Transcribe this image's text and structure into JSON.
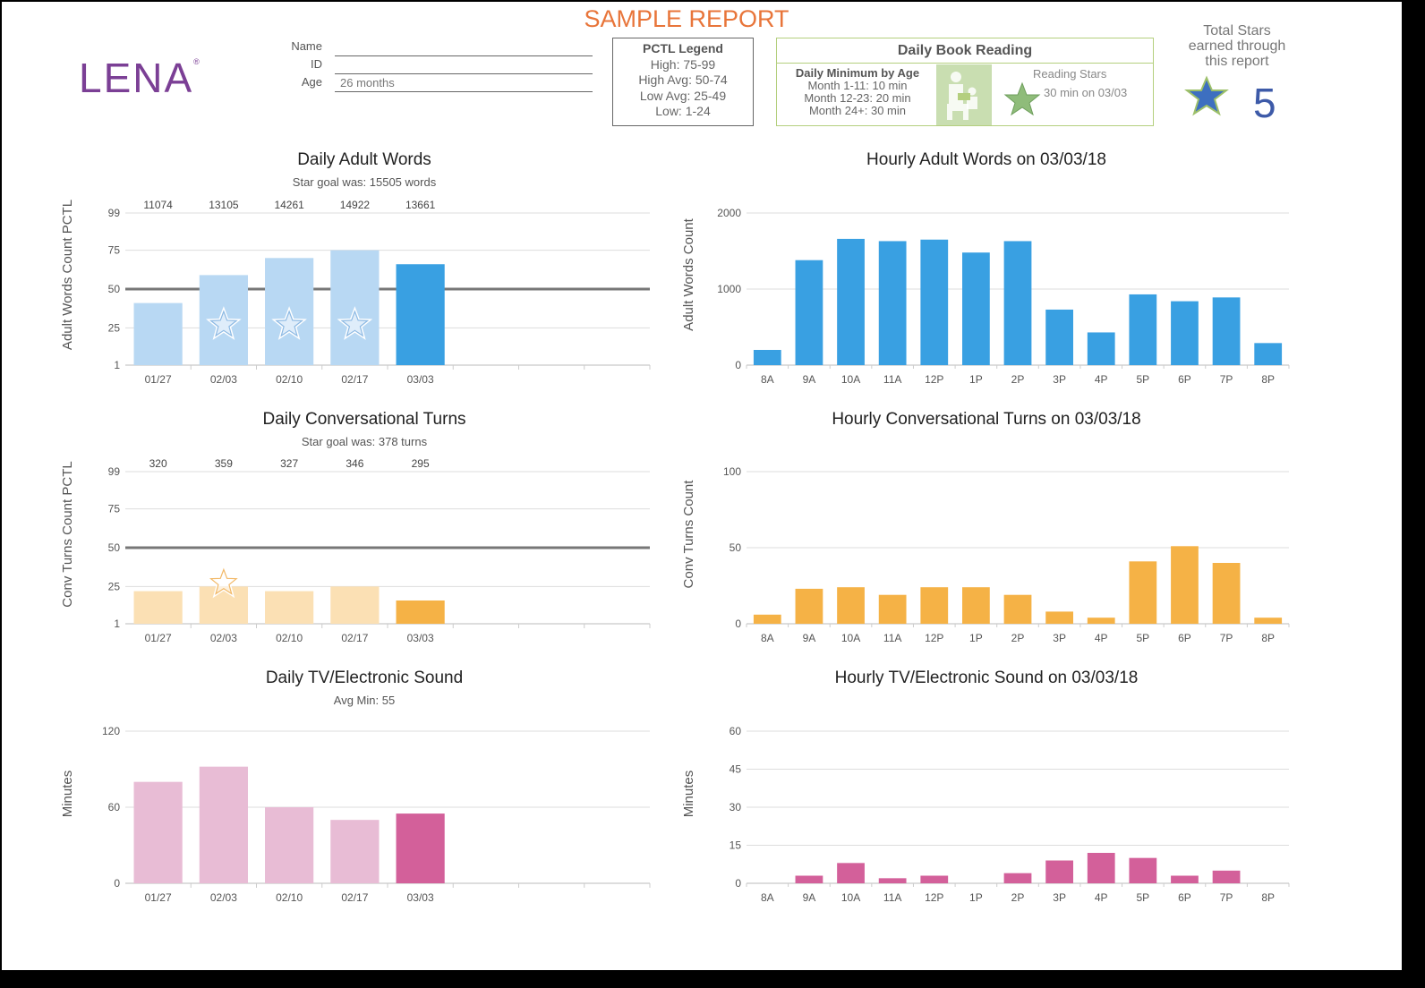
{
  "header": {
    "title": "SAMPLE REPORT",
    "logo": "LENA",
    "logo_mark": "®",
    "fields": [
      {
        "label": "Name",
        "value": ""
      },
      {
        "label": "ID",
        "value": ""
      },
      {
        "label": "Age",
        "value": "26 months"
      }
    ]
  },
  "pctl_legend": {
    "title": "PCTL Legend",
    "lines": [
      "High: 75-99",
      "High Avg: 50-74",
      "Low Avg: 25-49",
      "Low: 1-24"
    ]
  },
  "book_reading": {
    "title": "Daily Book Reading",
    "min_title": "Daily Minimum by Age",
    "min_lines": [
      "Month 1-11: 10 min",
      "Month 12-23: 20 min",
      "Month 24+: 30 min"
    ],
    "stars_title": "Reading Stars",
    "stars_entry": "30 min on 03/03"
  },
  "total_stars": {
    "label_lines": [
      "Total Stars",
      "earned through",
      "this report"
    ],
    "count": "5"
  },
  "colors": {
    "words": "#39a0e2",
    "words_light": "#b8d8f3",
    "turns": "#f5b246",
    "turns_light": "#fbe0b4",
    "tv": "#d3609a",
    "tv_light": "#e8bcd5",
    "accent": "#e8753a",
    "logo": "#7b3f95"
  },
  "chart_data": [
    {
      "type": "bar",
      "title": "Daily Adult Words",
      "subtitle": "Star goal was: 15505 words",
      "ylabel": "Adult Words Count PCTL",
      "xlabel": "",
      "categories": [
        "01/27",
        "02/03",
        "02/10",
        "02/17",
        "03/03"
      ],
      "values": [
        41,
        59,
        70,
        75,
        66
      ],
      "top_labels": [
        "11074",
        "13105",
        "14261",
        "14922",
        "13661"
      ],
      "stars": [
        false,
        true,
        true,
        true,
        false
      ],
      "yticks": [
        1,
        25,
        50,
        75,
        99
      ],
      "ylim": [
        1,
        99
      ],
      "ref_line": 50,
      "slots": 8,
      "color": "words",
      "highlight_last": true
    },
    {
      "type": "bar",
      "title": "Hourly Adult Words on 03/03/18",
      "ylabel": "Adult Words Count",
      "xlabel": "",
      "categories": [
        "8A",
        "9A",
        "10A",
        "11A",
        "12P",
        "1P",
        "2P",
        "3P",
        "4P",
        "5P",
        "6P",
        "7P",
        "8P"
      ],
      "values": [
        200,
        1380,
        1660,
        1630,
        1650,
        1480,
        1630,
        730,
        430,
        930,
        840,
        890,
        290
      ],
      "yticks": [
        0,
        1000,
        2000
      ],
      "ylim": [
        0,
        2000
      ],
      "slots": 13,
      "color": "words"
    },
    {
      "type": "bar",
      "title": "Daily Conversational Turns",
      "subtitle": "Star goal was: 378 turns",
      "ylabel": "Conv Turns Count PCTL",
      "xlabel": "",
      "categories": [
        "01/27",
        "02/03",
        "02/10",
        "02/17",
        "03/03"
      ],
      "values": [
        22,
        25,
        22,
        25,
        16
      ],
      "top_labels": [
        "320",
        "359",
        "327",
        "346",
        "295"
      ],
      "stars": [
        false,
        true,
        false,
        false,
        false
      ],
      "yticks": [
        1,
        25,
        50,
        75,
        99
      ],
      "ylim": [
        1,
        99
      ],
      "ref_line": 50,
      "slots": 8,
      "color": "turns",
      "highlight_last": true
    },
    {
      "type": "bar",
      "title": "Hourly Conversational Turns on 03/03/18",
      "ylabel": "Conv Turns Count",
      "xlabel": "",
      "categories": [
        "8A",
        "9A",
        "10A",
        "11A",
        "12P",
        "1P",
        "2P",
        "3P",
        "4P",
        "5P",
        "6P",
        "7P",
        "8P"
      ],
      "values": [
        6,
        23,
        24,
        19,
        24,
        24,
        19,
        8,
        4,
        41,
        51,
        40,
        4
      ],
      "yticks": [
        0,
        50,
        100
      ],
      "ylim": [
        0,
        100
      ],
      "slots": 13,
      "color": "turns"
    },
    {
      "type": "bar",
      "title": "Daily TV/Electronic Sound",
      "subtitle": "Avg Min: 55",
      "ylabel": "Minutes",
      "xlabel": "",
      "categories": [
        "01/27",
        "02/03",
        "02/10",
        "02/17",
        "03/03"
      ],
      "values": [
        80,
        92,
        60,
        50,
        55
      ],
      "yticks": [
        0,
        60,
        120
      ],
      "ylim": [
        0,
        120
      ],
      "slots": 8,
      "color": "tv",
      "highlight_last": true
    },
    {
      "type": "bar",
      "title": "Hourly TV/Electronic Sound on 03/03/18",
      "ylabel": "Minutes",
      "xlabel": "",
      "categories": [
        "8A",
        "9A",
        "10A",
        "11A",
        "12P",
        "1P",
        "2P",
        "3P",
        "4P",
        "5P",
        "6P",
        "7P",
        "8P"
      ],
      "values": [
        0,
        3,
        8,
        2,
        3,
        0,
        4,
        9,
        12,
        10,
        3,
        5,
        0
      ],
      "yticks": [
        0,
        15,
        30,
        45,
        60
      ],
      "ylim": [
        0,
        60
      ],
      "slots": 13,
      "color": "tv"
    }
  ]
}
